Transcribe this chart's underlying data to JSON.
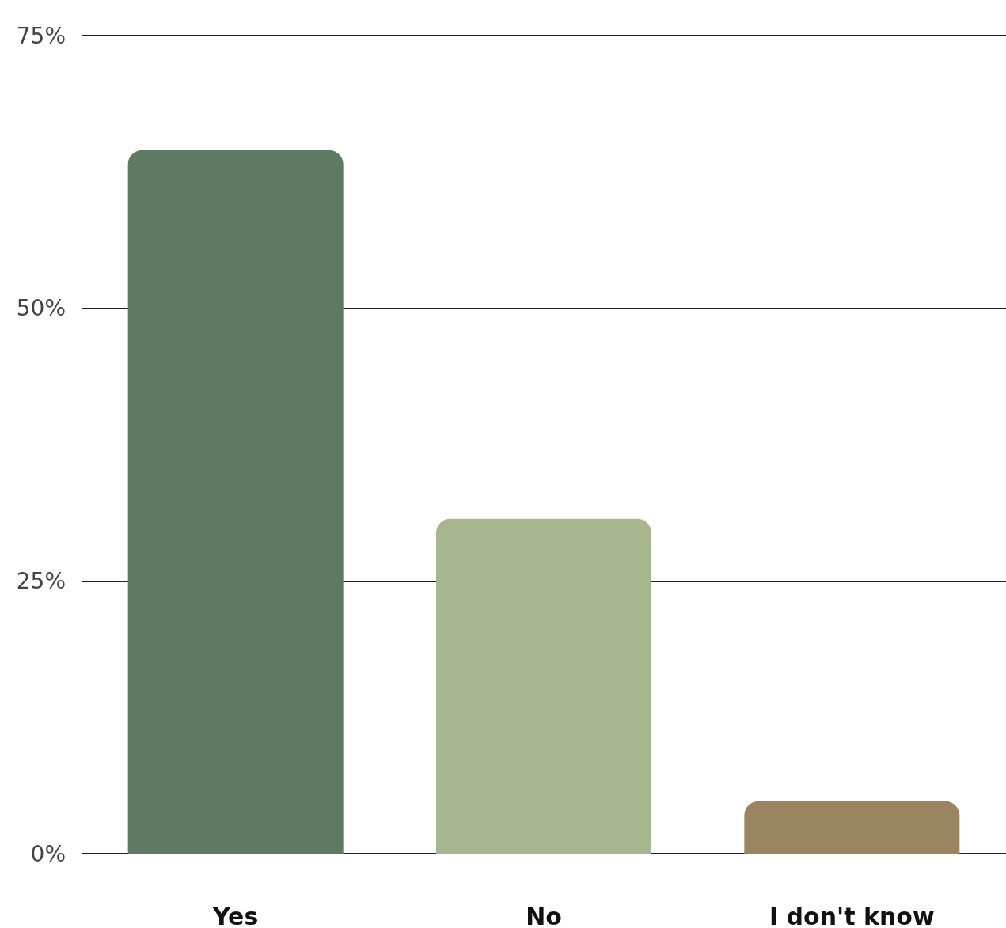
{
  "chart_data": {
    "type": "bar",
    "categories": [
      "Yes",
      "No",
      "I don't know"
    ],
    "values": [
      64.5,
      30.7,
      4.8
    ],
    "colors": [
      "#5e7a60",
      "#a7b68f",
      "#9a8560"
    ],
    "ylim": [
      0,
      75
    ],
    "yticks": [
      {
        "value": 0,
        "label": "0%"
      },
      {
        "value": 25,
        "label": "25%"
      },
      {
        "value": 50,
        "label": "50%"
      },
      {
        "value": 75,
        "label": "75%"
      }
    ],
    "grid": "y"
  }
}
